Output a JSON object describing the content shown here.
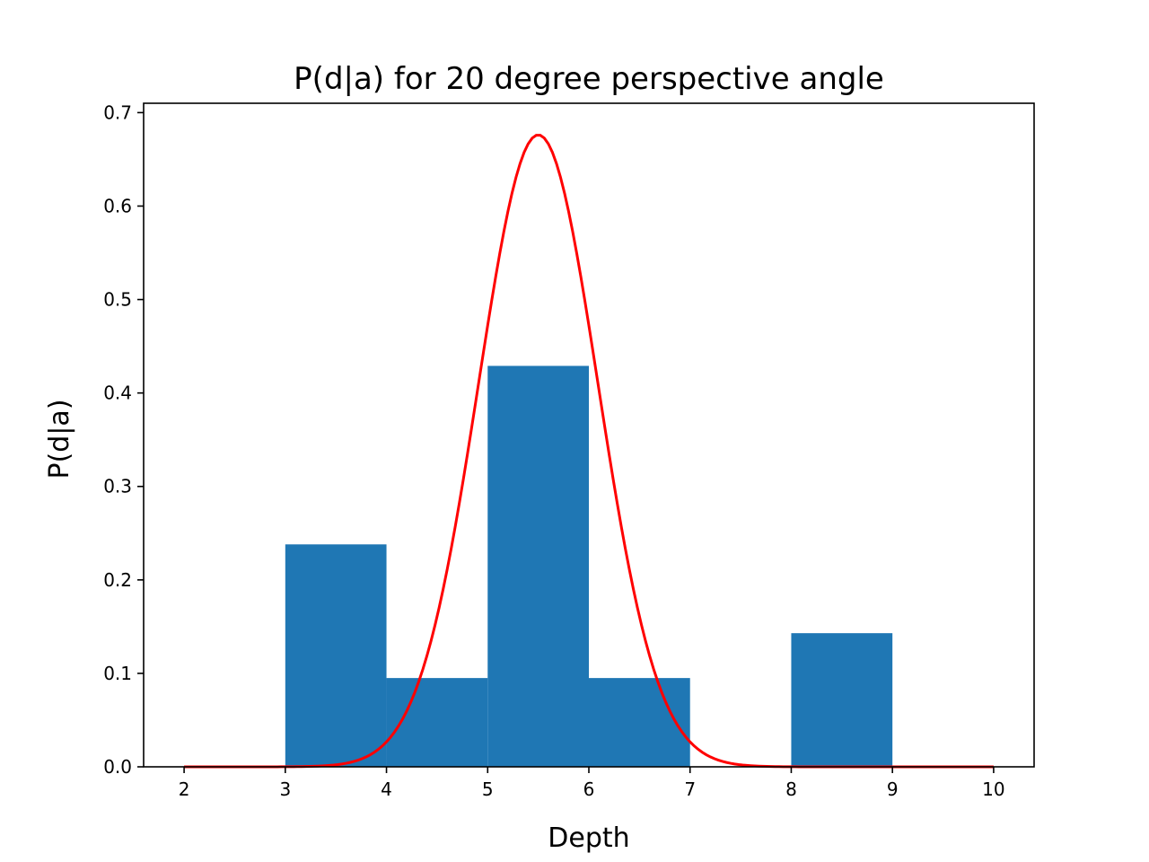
{
  "chart_data": {
    "type": "bar",
    "title": "P(d|a) for 20 degree perspective angle",
    "xlabel": "Depth",
    "ylabel": "P(d|a)",
    "xlim": [
      1.6,
      10.4
    ],
    "ylim": [
      0.0,
      0.71
    ],
    "grid": false,
    "xticks": [
      2,
      3,
      4,
      5,
      6,
      7,
      8,
      9,
      10
    ],
    "xtick_labels": [
      "2",
      "3",
      "4",
      "5",
      "6",
      "7",
      "8",
      "9",
      "10"
    ],
    "yticks": [
      0.0,
      0.1,
      0.2,
      0.3,
      0.4,
      0.5,
      0.6,
      0.7
    ],
    "ytick_labels": [
      "0.0",
      "0.1",
      "0.2",
      "0.3",
      "0.4",
      "0.5",
      "0.6",
      "0.7"
    ],
    "histogram": {
      "color": "#1f77b4",
      "bins": [
        {
          "start": 3,
          "end": 4,
          "value": 0.238
        },
        {
          "start": 4,
          "end": 5,
          "value": 0.095
        },
        {
          "start": 5,
          "end": 6,
          "value": 0.429
        },
        {
          "start": 6,
          "end": 7,
          "value": 0.095
        },
        {
          "start": 7,
          "end": 8,
          "value": 0.0
        },
        {
          "start": 8,
          "end": 9,
          "value": 0.143
        }
      ]
    },
    "curve": {
      "color": "#ff0000",
      "kind": "gaussian",
      "mean": 5.5,
      "std": 0.59,
      "x_range": [
        2,
        10
      ]
    }
  }
}
